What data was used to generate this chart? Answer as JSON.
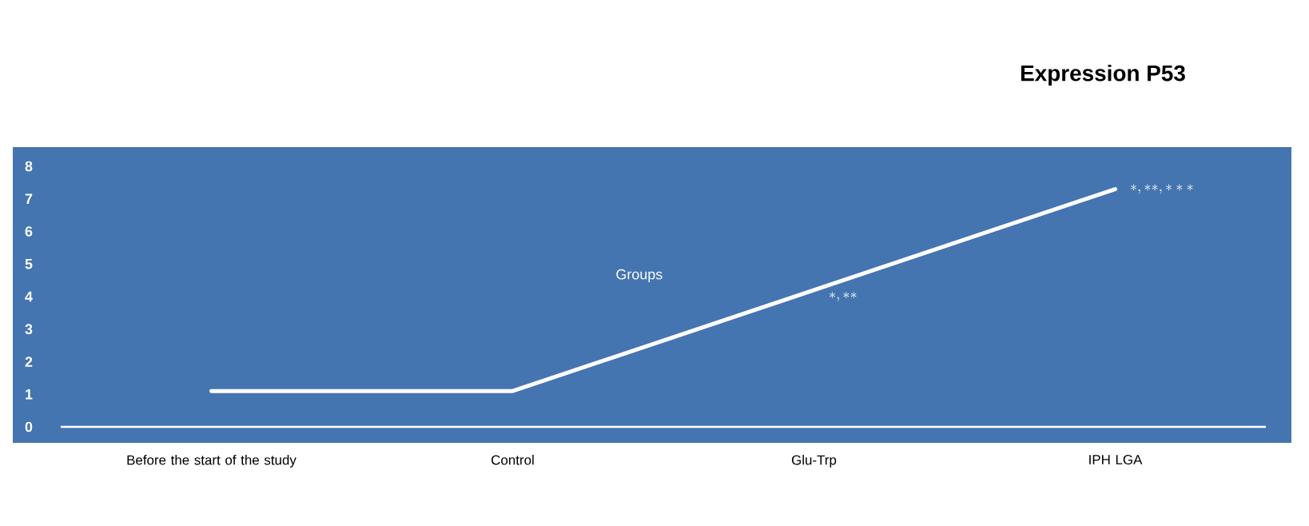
{
  "chart_data": {
    "type": "line",
    "title": "Expression P53",
    "xlabel": "Groups",
    "categories": [
      "Before the start of the study",
      "Control",
      "Glu-Trp",
      "IPH LGA"
    ],
    "values": [
      1.1,
      1.1,
      4.2,
      7.3
    ],
    "color": "#ffffff",
    "ylim": [
      0,
      8
    ],
    "yticks": [
      0,
      1,
      2,
      3,
      4,
      5,
      6,
      7,
      8
    ],
    "annotations": [
      {
        "text": "*,**",
        "x": "Glu-Trp",
        "y": 4.2
      },
      {
        "text": "*,**,***",
        "x": "IPH LGA",
        "y": 7.3
      }
    ]
  }
}
